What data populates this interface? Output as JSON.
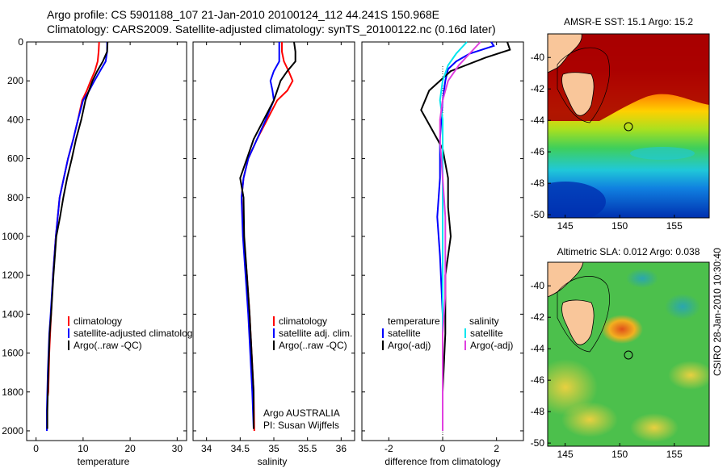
{
  "header": {
    "line1": "Argo profile: CS 5901188_107 21-Jan-2010 20100124_112 44.241S 150.968E",
    "line2": "Climatology: CARS2009. Satellite-adjusted climatology: synTS_20100122.nc (0.16d later)"
  },
  "colors": {
    "climatology": "#ff0000",
    "satellite": "#0000ff",
    "argo": "#000000",
    "sal_sat": "#00e5ee",
    "sal_argo": "#e040e0"
  },
  "chart_data": [
    {
      "type": "line",
      "xlabel": "temperature",
      "xlim": [
        -2,
        32
      ],
      "xticks": [
        0,
        10,
        20,
        30
      ],
      "ylim": [
        2050,
        0
      ],
      "yticks": [
        0,
        200,
        400,
        600,
        800,
        1000,
        1200,
        1400,
        1600,
        1800,
        2000
      ],
      "legend": [
        "climatology",
        "satellite-adjusted climatology",
        "Argo(..raw -QC)"
      ],
      "series": [
        {
          "name": "climatology",
          "color": "#ff0000",
          "x": [
            13.4,
            13.3,
            13.1,
            12.5,
            11.6,
            10.8,
            9.8,
            8.9,
            7.9,
            6.8,
            5.9,
            5.0,
            4.2,
            3.6,
            3.2,
            3.0,
            2.8,
            2.6,
            2.5
          ],
          "y": [
            0,
            50,
            100,
            150,
            200,
            250,
            300,
            400,
            500,
            600,
            700,
            800,
            1000,
            1200,
            1400,
            1500,
            1600,
            1800,
            1820
          ]
        },
        {
          "name": "satellite-adjusted climatology",
          "color": "#0000ff",
          "x": [
            15.1,
            15.1,
            14.8,
            13.6,
            12.4,
            11.3,
            10.0,
            8.9,
            7.9,
            6.8,
            5.9,
            5.0,
            4.2,
            3.6,
            3.1,
            2.8,
            2.5,
            2.3,
            2.3
          ],
          "y": [
            0,
            50,
            100,
            150,
            200,
            250,
            300,
            400,
            500,
            600,
            700,
            800,
            1000,
            1200,
            1400,
            1500,
            1700,
            1900,
            2000
          ]
        },
        {
          "name": "Argo(..raw -QC)",
          "color": "#000000",
          "x": [
            15.2,
            15.1,
            14.2,
            13.0,
            12.0,
            10.5,
            9.6,
            8.5,
            7.6,
            6.6,
            5.8,
            5.1,
            4.3,
            3.7,
            3.2,
            2.9,
            2.6,
            2.4,
            2.4
          ],
          "y": [
            0,
            50,
            100,
            150,
            200,
            300,
            400,
            500,
            600,
            700,
            800,
            900,
            1000,
            1200,
            1400,
            1500,
            1700,
            1900,
            1990
          ]
        }
      ]
    },
    {
      "type": "line",
      "xlabel": "salinity",
      "xlim": [
        33.8,
        36.2
      ],
      "xticks": [
        34,
        34.5,
        35,
        35.5,
        36
      ],
      "ylim": [
        2050,
        0
      ],
      "legend": [
        "climatology",
        "satellite adj. clim.",
        "Argo(..raw -QC)"
      ],
      "annotation": [
        "Argo AUSTRALIA",
        "PI: Susan Wijffels"
      ],
      "series": [
        {
          "name": "climatology",
          "color": "#ff0000",
          "x": [
            35.12,
            35.12,
            35.15,
            35.22,
            35.28,
            35.2,
            35.05,
            34.9,
            34.75,
            34.62,
            34.55,
            34.52,
            34.55,
            34.6,
            34.64,
            34.67,
            34.7,
            34.71
          ],
          "y": [
            0,
            50,
            100,
            150,
            200,
            250,
            300,
            400,
            500,
            600,
            700,
            800,
            1000,
            1200,
            1400,
            1600,
            1800,
            2000
          ]
        },
        {
          "name": "satellite adj. clim.",
          "color": "#0000ff",
          "x": [
            35.08,
            35.08,
            35.08,
            35.0,
            34.95,
            34.98,
            35.0,
            34.88,
            34.75,
            34.62,
            34.55,
            34.52,
            34.54,
            34.58,
            34.62,
            34.65,
            34.68,
            34.7
          ],
          "y": [
            0,
            50,
            100,
            150,
            200,
            250,
            300,
            400,
            500,
            600,
            700,
            800,
            1000,
            1200,
            1400,
            1600,
            1800,
            1990
          ]
        },
        {
          "name": "Argo(..raw -QC)",
          "color": "#000000",
          "x": [
            35.3,
            35.32,
            35.32,
            35.2,
            35.1,
            35.05,
            35.0,
            34.85,
            34.7,
            34.6,
            34.5,
            34.55,
            34.56,
            34.6,
            34.64,
            34.67,
            34.7,
            34.7
          ],
          "y": [
            0,
            50,
            100,
            150,
            200,
            250,
            300,
            400,
            500,
            600,
            700,
            800,
            1000,
            1200,
            1400,
            1600,
            1800,
            1990
          ]
        }
      ]
    },
    {
      "type": "line",
      "xlabel": "difference from climatology",
      "xlim": [
        -3,
        3
      ],
      "xticks": [
        -2,
        0,
        2
      ],
      "ylim": [
        2050,
        0
      ],
      "legend_titles": [
        "temperature",
        "salinity"
      ],
      "legend": [
        "satellite",
        "Argo(-adj)",
        "satellite",
        "Argo(-adj)"
      ],
      "series": [
        {
          "name": "temperature satellite",
          "color": "#0000ff",
          "x": [
            1.8,
            1.9,
            1.0,
            0.5,
            0.2,
            0.1,
            0.0,
            -0.1,
            -0.1,
            -0.2,
            -0.1,
            0.0,
            0.0,
            0.0,
            0.0
          ],
          "y": [
            0,
            20,
            60,
            100,
            140,
            200,
            300,
            500,
            700,
            900,
            1100,
            1400,
            1700,
            1900,
            2000
          ]
        },
        {
          "name": "temperature Argo(-adj)",
          "color": "#000000",
          "x": [
            2.4,
            2.5,
            1.6,
            0.3,
            -0.5,
            -0.8,
            -0.4,
            0.0,
            0.2,
            0.2,
            0.3,
            0.1,
            0.1,
            0.0,
            0.0
          ],
          "y": [
            0,
            40,
            80,
            150,
            250,
            350,
            450,
            550,
            700,
            850,
            1000,
            1200,
            1500,
            1800,
            2000
          ]
        },
        {
          "name": "salinity satellite",
          "color": "#00e5ee",
          "x": [
            0.9,
            0.5,
            0.2,
            0.0,
            -0.1,
            0.0,
            0.0,
            0.0,
            0.0,
            0.0,
            0.0,
            0.0,
            0.0,
            0.0,
            0.0
          ],
          "y": [
            0,
            60,
            120,
            200,
            300,
            400,
            500,
            700,
            900,
            1100,
            1300,
            1500,
            1700,
            1900,
            2000
          ]
        },
        {
          "name": "salinity Argo(-adj)",
          "color": "#e040e0",
          "x": [
            1.4,
            1.0,
            0.6,
            0.2,
            0.0,
            -0.1,
            -0.1,
            0.0,
            0.1,
            0.1,
            0.1,
            0.0,
            0.0,
            0.0,
            0.0
          ],
          "y": [
            0,
            60,
            120,
            200,
            300,
            400,
            500,
            700,
            900,
            1100,
            1300,
            1500,
            1700,
            1900,
            2000
          ]
        }
      ]
    },
    {
      "type": "heatmap",
      "title": "AMSR-E SST: 15.1 Argo: 15.2",
      "xticks": [
        145,
        150,
        155
      ],
      "yticks": [
        -40,
        -42,
        -44,
        -46,
        -48,
        -50
      ],
      "marker": {
        "lon": 150.97,
        "lat": -44.24
      }
    },
    {
      "type": "heatmap",
      "title": "Altimetric SLA: 0.012 Argo: 0.038",
      "xticks": [
        145,
        150,
        155
      ],
      "yticks": [
        -40,
        -42,
        -44,
        -46,
        -48,
        -50
      ],
      "marker": {
        "lon": 150.97,
        "lat": -44.24
      }
    }
  ],
  "credit": "CSIRO 28-Jan-2010 10:30:40"
}
